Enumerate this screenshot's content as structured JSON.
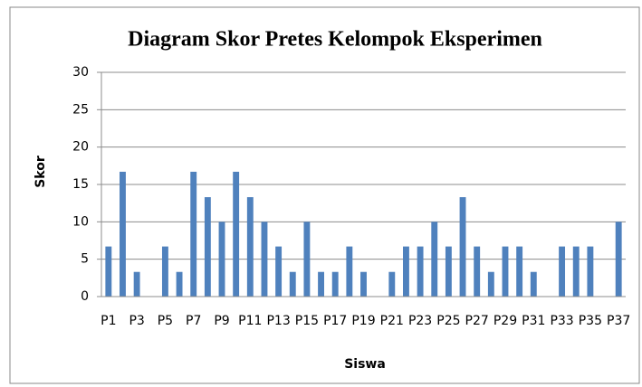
{
  "chart_data": {
    "type": "bar",
    "title": "Diagram Skor Pretes Kelompok Eksperimen",
    "x_label": "Siswa",
    "y_label": "Skor",
    "categories": [
      "P1",
      null,
      "P3",
      null,
      "P5",
      null,
      "P7",
      null,
      "P9",
      null,
      "P11",
      null,
      "P13",
      null,
      "P15",
      null,
      "P17",
      null,
      "P19",
      null,
      "P21",
      null,
      "P23",
      null,
      "P25",
      null,
      "P27",
      null,
      "P29",
      null,
      "P31",
      null,
      "P33",
      null,
      "P35",
      null,
      "P37"
    ],
    "values": [
      6.7,
      16.7,
      3.3,
      0,
      6.7,
      3.3,
      16.7,
      13.3,
      10,
      16.7,
      13.3,
      10,
      6.7,
      3.3,
      10,
      3.3,
      3.3,
      6.7,
      3.3,
      0,
      3.3,
      6.7,
      6.7,
      10,
      6.7,
      13.3,
      6.7,
      3.3,
      6.7,
      6.7,
      3.3,
      0,
      6.7,
      6.7,
      6.7,
      0,
      10
    ],
    "color": "#4f81bd",
    "ylim": [
      0,
      30
    ],
    "yticks": [
      0,
      5,
      10,
      15,
      20,
      25,
      30
    ],
    "grid": true
  }
}
